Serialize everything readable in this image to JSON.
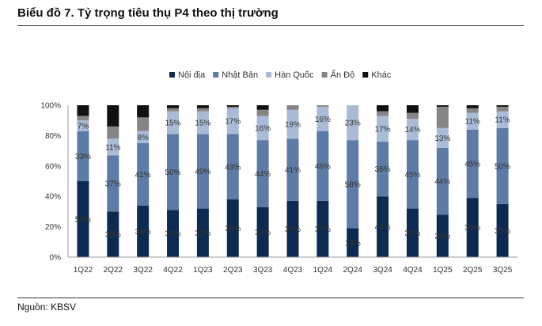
{
  "title": "Biểu đồ 7. Tỷ trọng tiêu thụ P4 theo thị trường",
  "source": "Nguồn: KBSV",
  "chart_data": {
    "type": "bar",
    "stacked": true,
    "categories": [
      "1Q22",
      "2Q22",
      "3Q22",
      "4Q22",
      "1Q23",
      "2Q23",
      "3Q23",
      "4Q23",
      "1Q24",
      "2Q24",
      "3Q24",
      "4Q24",
      "1Q25",
      "2Q25",
      "3Q25"
    ],
    "ylim": [
      0,
      100
    ],
    "yticks": [
      "0%",
      "20%",
      "40%",
      "60%",
      "80%",
      "100%"
    ],
    "legend_position": "top",
    "grid": false,
    "series": [
      {
        "name": "Nội địa",
        "color": "#0d2b52",
        "values": [
          50,
          30,
          34,
          31,
          32,
          38,
          33,
          37,
          37,
          19,
          40,
          32,
          28,
          39,
          35
        ],
        "labels": [
          "50%",
          "30%",
          "34%",
          "31%",
          "32%",
          "38%",
          "33%",
          "37%",
          "37%",
          "19%",
          "40%",
          "32%",
          "28%",
          "39%",
          "35%"
        ]
      },
      {
        "name": "Nhật Bản",
        "color": "#5c7ba6",
        "values": [
          33,
          37,
          41,
          50,
          49,
          43,
          44,
          41,
          46,
          58,
          36,
          45,
          44,
          45,
          50
        ],
        "labels": [
          "33%",
          "37%",
          "41%",
          "50%",
          "49%",
          "43%",
          "44%",
          "41%",
          "46%",
          "58%",
          "36%",
          "45%",
          "44%",
          "45%",
          "50%"
        ]
      },
      {
        "name": "Hàn Quốc",
        "color": "#a9bbd6",
        "values": [
          7,
          11,
          8,
          15,
          15,
          17,
          16,
          19,
          16,
          23,
          17,
          14,
          13,
          11,
          11
        ],
        "labels": [
          "7%",
          "11%",
          "8%",
          "15%",
          "15%",
          "17%",
          "16%",
          "19%",
          "16%",
          "23%",
          "17%",
          "14%",
          "13%",
          "11%",
          "11%"
        ]
      },
      {
        "name": "Ấn Độ",
        "color": "#858585",
        "values": [
          3,
          8,
          9,
          2,
          2,
          1,
          4,
          3,
          1,
          0,
          3,
          4,
          14,
          3,
          3
        ],
        "labels": [
          "",
          "",
          "",
          "",
          "",
          "",
          "",
          "",
          "",
          "",
          "",
          "",
          "",
          "",
          ""
        ]
      },
      {
        "name": "Khác",
        "color": "#111111",
        "values": [
          7,
          14,
          8,
          2,
          2,
          1,
          3,
          0,
          0,
          0,
          4,
          5,
          1,
          2,
          1
        ],
        "labels": [
          "",
          "",
          "",
          "",
          "",
          "",
          "",
          "",
          "",
          "",
          "",
          "",
          "",
          "",
          ""
        ]
      }
    ]
  }
}
